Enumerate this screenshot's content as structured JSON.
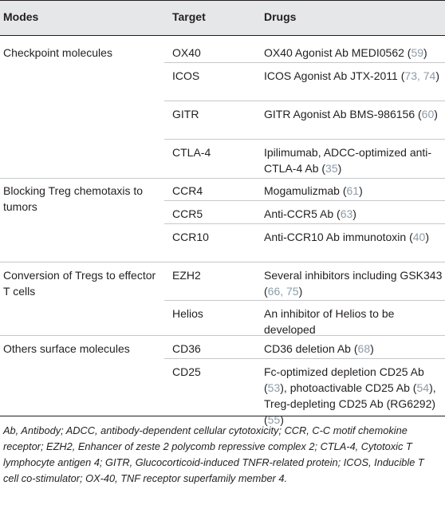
{
  "header": {
    "modes": "Modes",
    "target": "Target",
    "drugs": "Drugs"
  },
  "rows": [
    {
      "mode": "Checkpoint molecules",
      "target": "OX40",
      "drug": "OX40 Agonist Ab MEDI0562",
      "refs": "59"
    },
    {
      "mode": "",
      "target": "ICOS",
      "drug": "ICOS Agonist Ab JTX-2011",
      "refs": "73, 74"
    },
    {
      "mode": "",
      "target": "GITR",
      "drug": "GITR Agonist Ab BMS-986156",
      "refs": "60"
    },
    {
      "mode": "",
      "target": "CTLA-4",
      "drug": "Ipilimumab, ADCC-optimized anti-CTLA-4 Ab",
      "refs": "35"
    },
    {
      "mode": "Blocking Treg chemotaxis to tumors",
      "target": "CCR4",
      "drug": "Mogamulizmab",
      "refs": "61"
    },
    {
      "mode": "",
      "target": "CCR5",
      "drug": "Anti-CCR5 Ab",
      "refs": "63"
    },
    {
      "mode": "",
      "target": "CCR10",
      "drug": "Anti-CCR10 Ab immunotoxin",
      "refs": "40"
    },
    {
      "mode": "Conversion of Tregs to effector T cells",
      "target": "EZH2",
      "drug": "Several inhibitors including GSK343",
      "refs": "66, 75"
    },
    {
      "mode": "",
      "target": "Helios",
      "drug": "An inhibitor of Helios to be developed",
      "refs": ""
    },
    {
      "mode": "Others surface molecules",
      "target": "CD36",
      "drug": "CD36 deletion Ab",
      "refs": "68"
    },
    {
      "mode": "",
      "target": "CD25",
      "drug_parts": [
        {
          "text": "Fc-optimized depletion CD25 Ab",
          "refs": "53"
        },
        {
          "text": "photoactivable CD25 Ab",
          "refs": "54"
        },
        {
          "text": "Treg-depleting CD25 Ab (RG6292)",
          "refs": "55"
        }
      ]
    }
  ],
  "footnote": "Ab, Antibody; ADCC, antibody-dependent cellular cytotoxicity; CCR, C-C motif chemokine receptor; EZH2, Enhancer of zeste 2 polycomb repressive complex 2; CTLA-4, Cytotoxic T lymphocyte antigen 4; GITR, Glucocorticoid-induced TNFR-related protein; ICOS, Inducible T cell co-stimulator; OX-40, TNF receptor superfamily member 4."
}
